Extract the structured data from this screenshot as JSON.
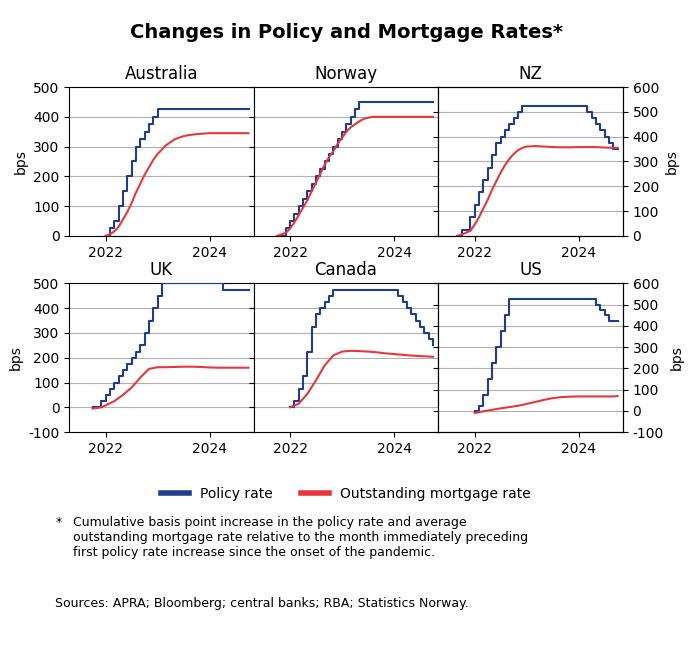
{
  "title": "Changes in Policy and Mortgage Rates*",
  "legend": "lower center",
  "annotations": [
    "*",
    "Cumulative basis point increase in the policy rate and average\noutstanding mortgage rate relative to the month immediately preceding\nfirst policy rate increase since the onset of the pandemic.",
    "Sources: APRA; Bloomberg; central banks; RBA; Statistics Norway."
  ],
  "chart_data": [
    {
      "type": "line",
      "title": "Australia",
      "ylabel": "bps",
      "grid": "y",
      "xlim": [
        2021.3,
        2024.85
      ],
      "xticks": [
        2022,
        2024
      ],
      "ylim": [
        0,
        500
      ],
      "yticks": [
        0,
        100,
        200,
        300,
        400,
        500
      ],
      "series": [
        {
          "name": "Policy rate",
          "color": "#1f3d8c",
          "line_style": "steps",
          "x": [
            2022.0,
            2022.083,
            2022.167,
            2022.25,
            2022.333,
            2022.417,
            2022.5,
            2022.583,
            2022.667,
            2022.75,
            2022.833,
            2022.917,
            2023.0,
            2023.083,
            2023.167,
            2023.25,
            2023.333,
            2023.417,
            2023.5,
            2023.583,
            2023.667,
            2023.75,
            2023.833,
            2023.917,
            2024.0,
            2024.083,
            2024.167,
            2024.25,
            2024.333,
            2024.417,
            2024.5,
            2024.583,
            2024.667,
            2024.75
          ],
          "values": [
            0,
            25,
            50,
            100,
            150,
            200,
            250,
            300,
            325,
            350,
            375,
            400,
            425,
            425,
            425,
            425,
            425,
            425,
            425,
            425,
            425,
            425,
            425,
            425,
            425,
            425,
            425,
            425,
            425,
            425,
            425,
            425,
            425,
            425
          ]
        },
        {
          "name": "Outstanding mortgage rate",
          "color": "#e8363d",
          "line_style": "solid",
          "x": [
            2022.0,
            2022.083,
            2022.167,
            2022.25,
            2022.333,
            2022.417,
            2022.5,
            2022.583,
            2022.667,
            2022.75,
            2022.833,
            2022.917,
            2023.0,
            2023.083,
            2023.167,
            2023.25,
            2023.333,
            2023.417,
            2023.5,
            2023.583,
            2023.667,
            2023.75,
            2023.833,
            2023.917,
            2024.0,
            2024.083,
            2024.167,
            2024.25,
            2024.333,
            2024.417,
            2024.5,
            2024.583,
            2024.667,
            2024.75
          ],
          "values": [
            0,
            5,
            15,
            30,
            55,
            80,
            110,
            145,
            175,
            205,
            230,
            255,
            275,
            290,
            305,
            315,
            325,
            330,
            335,
            338,
            340,
            342,
            343,
            344,
            345,
            345,
            345,
            345,
            345,
            345,
            345,
            345,
            345,
            345
          ]
        }
      ]
    },
    {
      "type": "line",
      "title": "Norway",
      "grid": "y",
      "tick_labels": "x",
      "xlim": [
        2021.3,
        2024.85
      ],
      "xticks": [
        2022,
        2024
      ],
      "ylim": [
        0,
        500
      ],
      "yticks": [
        0,
        100,
        200,
        300,
        400,
        500
      ],
      "series": [
        {
          "name": "Policy rate",
          "color": "#1f3d8c",
          "line_style": "steps",
          "x": [
            2021.75,
            2021.917,
            2022.0,
            2022.083,
            2022.167,
            2022.25,
            2022.333,
            2022.417,
            2022.5,
            2022.583,
            2022.667,
            2022.75,
            2022.833,
            2022.917,
            2023.0,
            2023.083,
            2023.167,
            2023.25,
            2023.333,
            2023.417,
            2023.5,
            2023.583,
            2023.667,
            2023.75,
            2023.833,
            2023.917,
            2024.0,
            2024.083,
            2024.167,
            2024.25,
            2024.333,
            2024.417,
            2024.5,
            2024.583,
            2024.667,
            2024.75
          ],
          "values": [
            0,
            25,
            50,
            75,
            100,
            125,
            150,
            175,
            200,
            225,
            250,
            275,
            300,
            325,
            350,
            375,
            400,
            425,
            450,
            450,
            450,
            450,
            450,
            450,
            450,
            450,
            450,
            450,
            450,
            450,
            450,
            450,
            450,
            450,
            450,
            450
          ]
        },
        {
          "name": "Outstanding mortgage rate",
          "color": "#e8363d",
          "line_style": "solid",
          "x": [
            2021.75,
            2021.917,
            2022.0,
            2022.083,
            2022.167,
            2022.25,
            2022.333,
            2022.417,
            2022.5,
            2022.583,
            2022.667,
            2022.75,
            2022.833,
            2022.917,
            2023.0,
            2023.083,
            2023.167,
            2023.25,
            2023.333,
            2023.417,
            2023.5,
            2023.583,
            2023.667,
            2023.75,
            2023.833,
            2023.917,
            2024.0,
            2024.083,
            2024.167,
            2024.25,
            2024.333,
            2024.417,
            2024.5,
            2024.583,
            2024.667,
            2024.75
          ],
          "values": [
            0,
            10,
            25,
            45,
            70,
            95,
            120,
            150,
            180,
            210,
            240,
            265,
            285,
            310,
            330,
            350,
            365,
            375,
            385,
            393,
            397,
            400,
            400,
            400,
            400,
            400,
            400,
            400,
            400,
            400,
            400,
            400,
            400,
            400,
            400,
            400
          ]
        }
      ]
    },
    {
      "type": "line",
      "title": "NZ",
      "grid": "y",
      "tick_labels": "x",
      "y2label": "bps",
      "xlim": [
        2021.3,
        2024.85
      ],
      "xticks": [
        2022,
        2024
      ],
      "ylim": [
        0,
        600
      ],
      "yticks": [
        0,
        100,
        200,
        300,
        400,
        500,
        600
      ],
      "y2lim": [
        0,
        600
      ],
      "y2ticks": [
        0,
        100,
        200,
        300,
        400,
        500,
        600
      ],
      "series": [
        {
          "name": "Policy rate",
          "color": "#1f3d8c",
          "line_style": "steps",
          "x": [
            2021.67,
            2021.75,
            2021.917,
            2022.0,
            2022.083,
            2022.167,
            2022.25,
            2022.333,
            2022.417,
            2022.5,
            2022.583,
            2022.667,
            2022.75,
            2022.833,
            2022.917,
            2023.0,
            2023.083,
            2023.167,
            2023.25,
            2023.5,
            2023.75,
            2024.0,
            2024.083,
            2024.167,
            2024.25,
            2024.333,
            2024.417,
            2024.5,
            2024.583,
            2024.667,
            2024.75
          ],
          "values": [
            0,
            25,
            75,
            125,
            175,
            225,
            275,
            325,
            375,
            400,
            425,
            450,
            475,
            500,
            525,
            525,
            525,
            525,
            525,
            525,
            525,
            525,
            525,
            500,
            475,
            450,
            425,
            400,
            375,
            350,
            350
          ]
        },
        {
          "name": "Outstanding mortgage rate",
          "color": "#e8363d",
          "line_style": "solid",
          "x": [
            2021.67,
            2021.75,
            2021.917,
            2022.0,
            2022.083,
            2022.167,
            2022.25,
            2022.333,
            2022.417,
            2022.5,
            2022.583,
            2022.667,
            2022.75,
            2022.833,
            2022.917,
            2023.0,
            2023.167,
            2023.333,
            2023.5,
            2023.667,
            2023.833,
            2024.0,
            2024.167,
            2024.333,
            2024.5,
            2024.667,
            2024.75
          ],
          "values": [
            0,
            5,
            20,
            45,
            75,
            110,
            145,
            185,
            220,
            255,
            285,
            310,
            330,
            345,
            355,
            360,
            362,
            360,
            358,
            357,
            357,
            358,
            358,
            358,
            356,
            355,
            355
          ]
        }
      ]
    },
    {
      "type": "line",
      "title": "UK",
      "ylabel": "bps",
      "grid": "y",
      "xlim": [
        2021.3,
        2024.85
      ],
      "xticks": [
        2022,
        2024
      ],
      "ylim": [
        -100,
        500
      ],
      "yticks": [
        -100,
        0,
        100,
        200,
        300,
        400,
        500
      ],
      "series": [
        {
          "name": "Policy rate",
          "color": "#1f3d8c",
          "line_style": "steps",
          "x": [
            2021.75,
            2021.917,
            2022.0,
            2022.083,
            2022.167,
            2022.25,
            2022.333,
            2022.417,
            2022.5,
            2022.583,
            2022.667,
            2022.75,
            2022.833,
            2022.917,
            2023.0,
            2023.083,
            2023.167,
            2023.25,
            2023.333,
            2023.417,
            2023.5,
            2023.583,
            2023.667,
            2023.75,
            2023.833,
            2023.917,
            2024.0,
            2024.083,
            2024.167,
            2024.25,
            2024.333,
            2024.417,
            2024.5,
            2024.583,
            2024.667,
            2024.75
          ],
          "values": [
            0,
            25,
            50,
            75,
            100,
            125,
            150,
            175,
            200,
            225,
            250,
            300,
            350,
            400,
            450,
            500,
            500,
            500,
            500,
            500,
            500,
            500,
            500,
            500,
            500,
            500,
            500,
            500,
            500,
            475,
            475,
            475,
            475,
            475,
            475,
            475
          ]
        },
        {
          "name": "Outstanding mortgage rate",
          "color": "#e8363d",
          "line_style": "solid",
          "x": [
            2021.75,
            2021.917,
            2022.0,
            2022.167,
            2022.333,
            2022.5,
            2022.667,
            2022.833,
            2023.0,
            2023.167,
            2023.333,
            2023.5,
            2023.667,
            2023.833,
            2024.0,
            2024.167,
            2024.333,
            2024.5,
            2024.667,
            2024.75
          ],
          "values": [
            -5,
            0,
            8,
            25,
            50,
            80,
            120,
            155,
            162,
            162,
            163,
            164,
            164,
            163,
            161,
            160,
            160,
            160,
            160,
            160
          ]
        }
      ]
    },
    {
      "type": "line",
      "title": "Canada",
      "grid": "y",
      "tick_labels": "x",
      "xlim": [
        2021.3,
        2024.85
      ],
      "xticks": [
        2022,
        2024
      ],
      "ylim": [
        -100,
        500
      ],
      "yticks": [
        -100,
        0,
        100,
        200,
        300,
        400,
        500
      ],
      "series": [
        {
          "name": "Policy rate",
          "color": "#1f3d8c",
          "line_style": "steps",
          "x": [
            2022.0,
            2022.083,
            2022.167,
            2022.25,
            2022.333,
            2022.417,
            2022.5,
            2022.583,
            2022.667,
            2022.75,
            2022.833,
            2022.917,
            2023.0,
            2023.25,
            2023.5,
            2023.75,
            2024.0,
            2024.083,
            2024.167,
            2024.25,
            2024.333,
            2024.417,
            2024.5,
            2024.583,
            2024.667,
            2024.75
          ],
          "values": [
            0,
            25,
            75,
            125,
            225,
            325,
            375,
            400,
            425,
            450,
            475,
            475,
            475,
            475,
            475,
            475,
            475,
            450,
            425,
            400,
            375,
            350,
            325,
            300,
            275,
            250
          ]
        },
        {
          "name": "Outstanding mortgage rate",
          "color": "#e8363d",
          "line_style": "solid",
          "x": [
            2022.0,
            2022.167,
            2022.333,
            2022.5,
            2022.667,
            2022.833,
            2023.0,
            2023.167,
            2023.333,
            2023.5,
            2023.667,
            2023.833,
            2024.0,
            2024.167,
            2024.333,
            2024.5,
            2024.667,
            2024.75
          ],
          "values": [
            0,
            15,
            55,
            110,
            170,
            210,
            225,
            228,
            227,
            225,
            222,
            218,
            215,
            212,
            209,
            207,
            205,
            204
          ]
        }
      ]
    },
    {
      "type": "line",
      "title": "US",
      "grid": "y",
      "tick_labels": "x",
      "y2label": "bps",
      "xlim": [
        2021.3,
        2024.85
      ],
      "xticks": [
        2022,
        2024
      ],
      "ylim": [
        -100,
        600
      ],
      "yticks": [
        -100,
        0,
        100,
        200,
        300,
        400,
        500,
        600
      ],
      "y2lim": [
        -100,
        600
      ],
      "y2ticks": [
        -100,
        0,
        100,
        200,
        300,
        400,
        500,
        600
      ],
      "series": [
        {
          "name": "Policy rate",
          "color": "#1f3d8c",
          "line_style": "steps",
          "x": [
            2022.0,
            2022.083,
            2022.167,
            2022.25,
            2022.333,
            2022.417,
            2022.5,
            2022.583,
            2022.667,
            2022.75,
            2022.833,
            2022.917,
            2023.0,
            2023.167,
            2023.333,
            2023.5,
            2023.667,
            2023.75,
            2023.917,
            2024.0,
            2024.25,
            2024.333,
            2024.417,
            2024.5,
            2024.583,
            2024.667,
            2024.75
          ],
          "values": [
            0,
            25,
            75,
            150,
            225,
            300,
            375,
            450,
            525,
            525,
            525,
            525,
            525,
            525,
            525,
            525,
            525,
            525,
            525,
            525,
            525,
            500,
            475,
            450,
            425,
            425,
            425
          ]
        },
        {
          "name": "Outstanding mortgage rate",
          "color": "#e8363d",
          "line_style": "solid",
          "x": [
            2022.0,
            2022.167,
            2022.333,
            2022.5,
            2022.667,
            2022.833,
            2023.0,
            2023.167,
            2023.333,
            2023.5,
            2023.667,
            2023.833,
            2024.0,
            2024.167,
            2024.333,
            2024.5,
            2024.667,
            2024.75
          ],
          "values": [
            -10,
            -2,
            5,
            12,
            18,
            24,
            33,
            42,
            52,
            60,
            65,
            67,
            68,
            68,
            68,
            68,
            68,
            70
          ]
        }
      ]
    }
  ]
}
